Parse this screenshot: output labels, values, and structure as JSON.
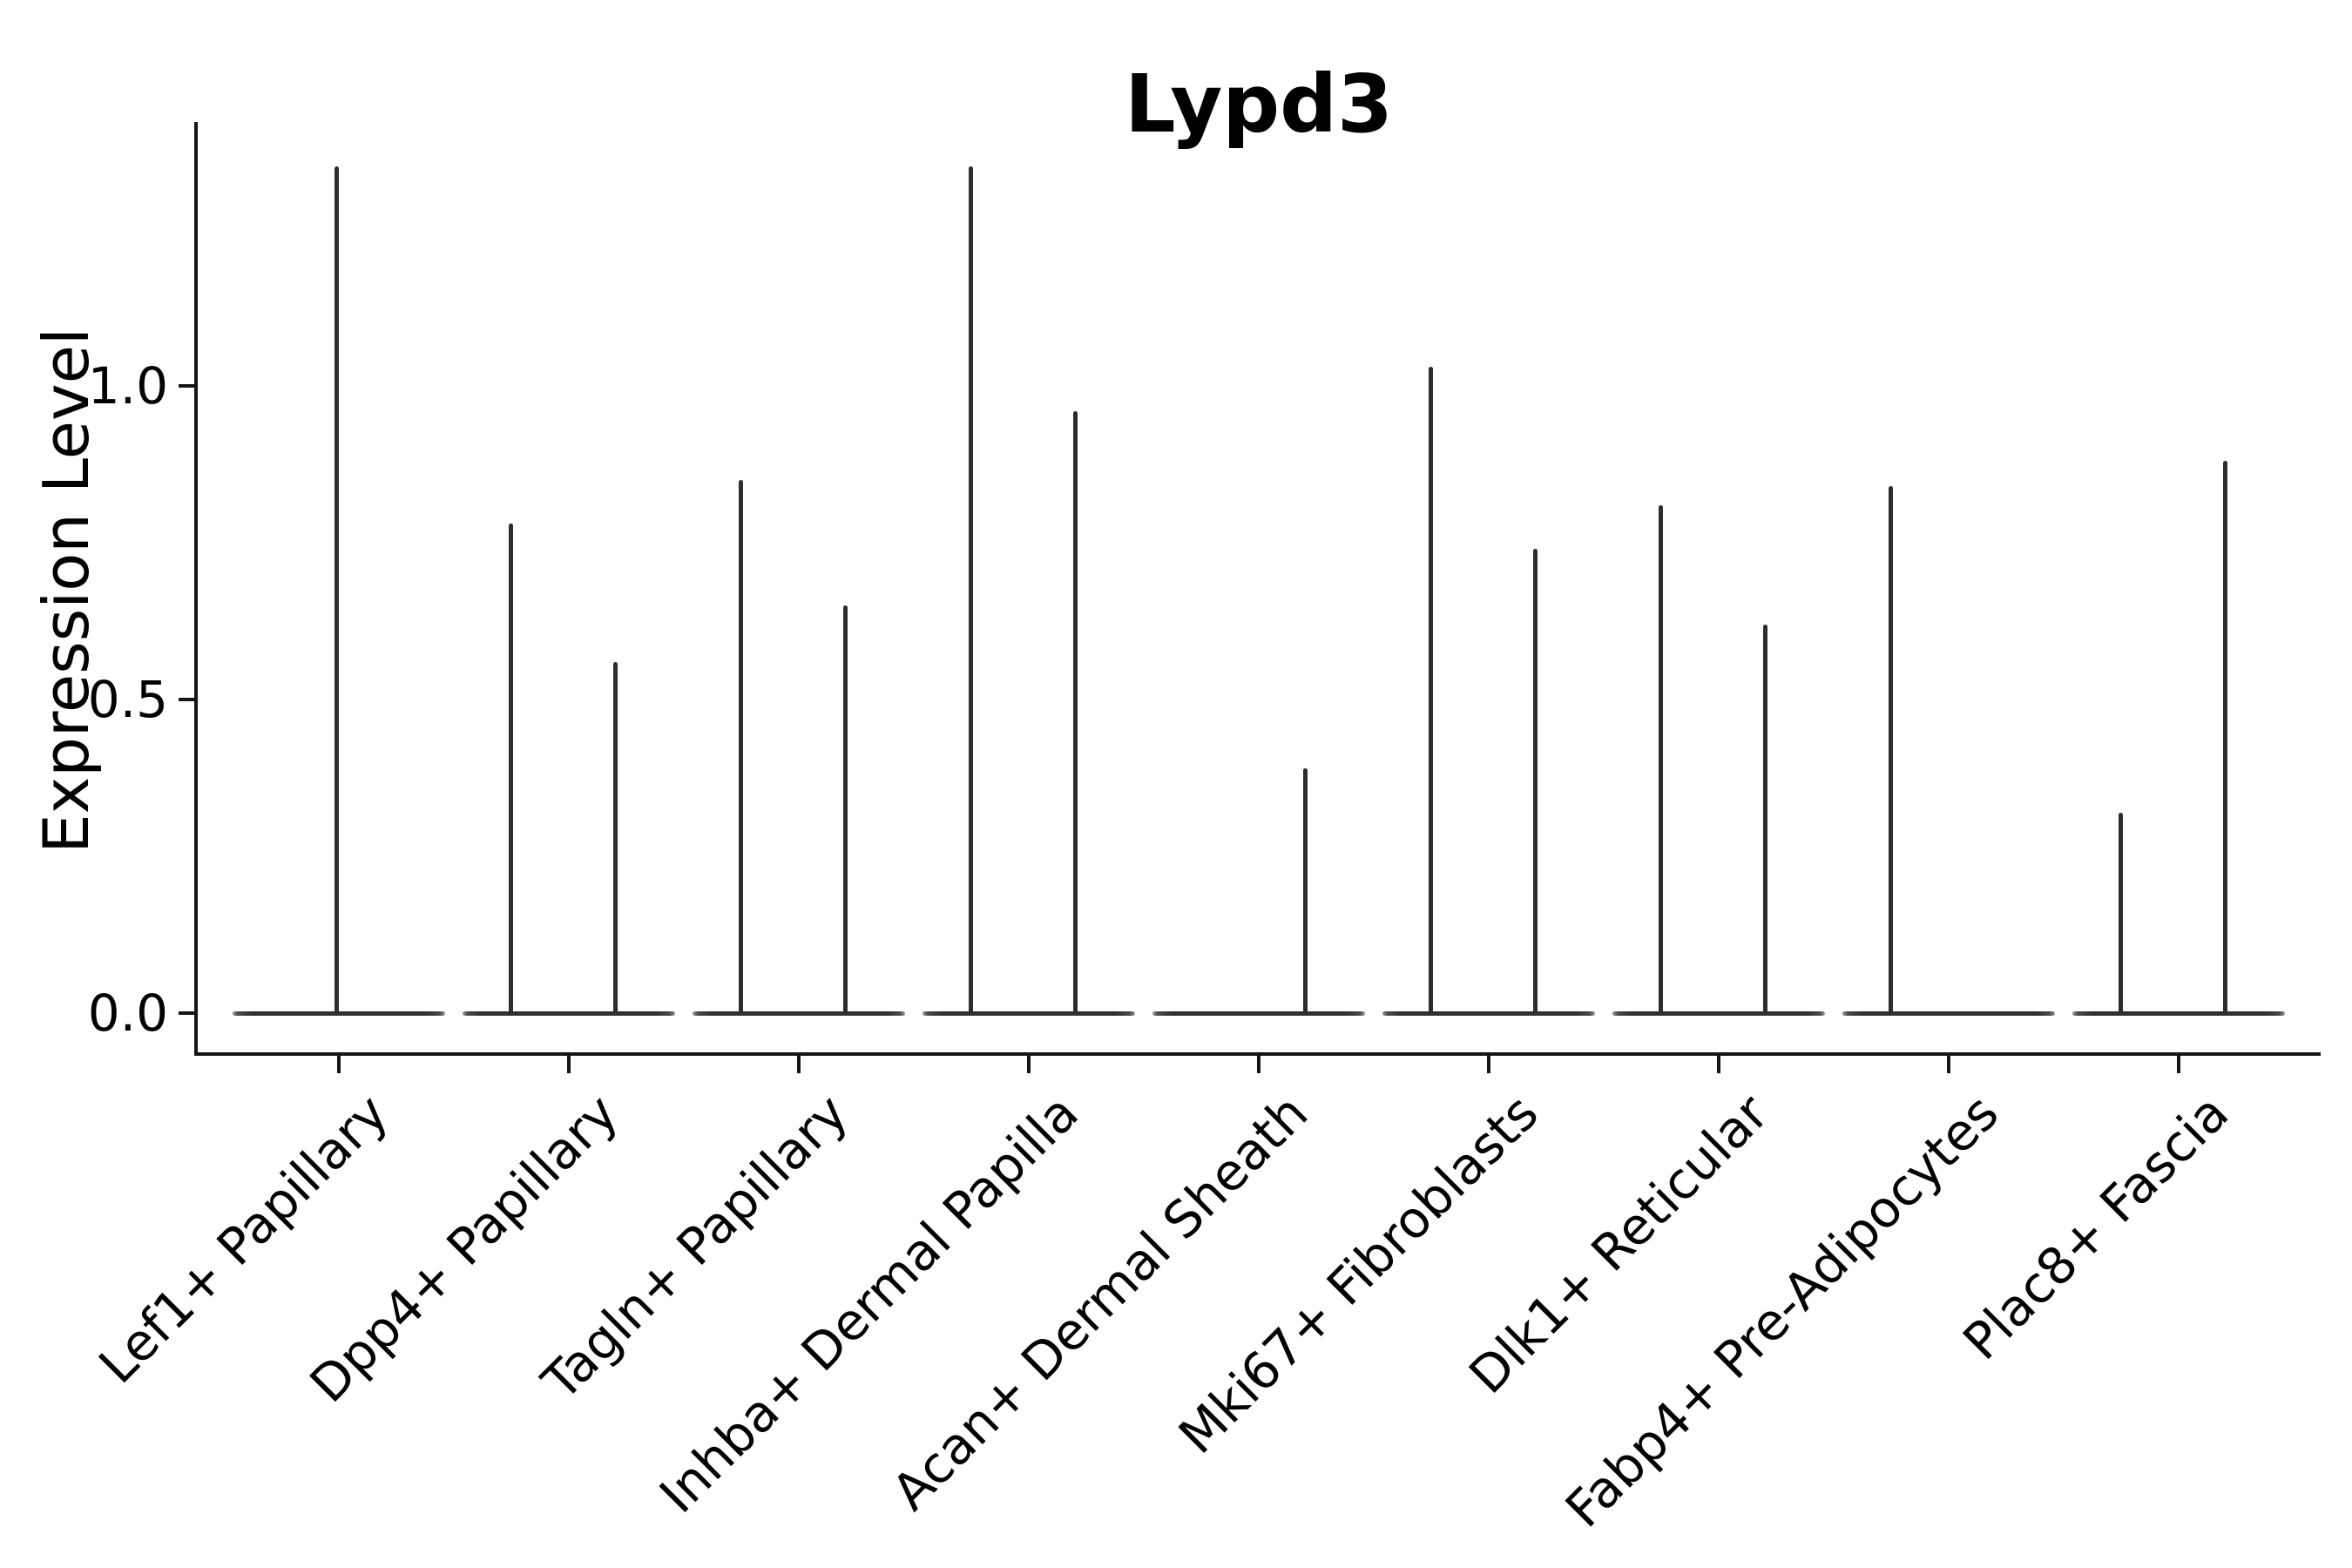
{
  "title": "Lypd3",
  "chart_data": {
    "type": "violin",
    "title": "Lypd3",
    "ylabel": "Expression Level",
    "xlabel": "",
    "yticks": [
      0.0,
      0.5,
      1.0
    ],
    "ylim": [
      -0.07,
      1.42
    ],
    "grid": false,
    "legend": "none",
    "baseline_value": 0.0,
    "categories": [
      "Lef1+ Papillary",
      "Dpp4+ Papillary",
      "Tagln+ Papillary",
      "Inhba+ Dermal Papilla",
      "Acan+ Dermal Sheath",
      "Mki67+ Fibroblasts",
      "Dlk1+ Reticular",
      "Fabp4+ Pre-Adipocytes",
      "Plac8+ Fascia"
    ],
    "violins": [
      {
        "category": "Lef1+ Papillary",
        "spikes": [
          {
            "slot": "center",
            "max": 1.35
          }
        ]
      },
      {
        "category": "Dpp4+ Papillary",
        "spikes": [
          {
            "slot": "left",
            "max": 0.78
          },
          {
            "slot": "right",
            "max": 0.56
          }
        ]
      },
      {
        "category": "Tagln+ Papillary",
        "spikes": [
          {
            "slot": "left",
            "max": 0.85
          },
          {
            "slot": "right",
            "max": 0.65
          }
        ]
      },
      {
        "category": "Inhba+ Dermal Papilla",
        "spikes": [
          {
            "slot": "left",
            "max": 1.35
          },
          {
            "slot": "right",
            "max": 0.96
          }
        ]
      },
      {
        "category": "Acan+ Dermal Sheath",
        "spikes": [
          {
            "slot": "right",
            "max": 0.39
          }
        ]
      },
      {
        "category": "Mki67+ Fibroblasts",
        "spikes": [
          {
            "slot": "left",
            "max": 1.03
          },
          {
            "slot": "right",
            "max": 0.74
          }
        ]
      },
      {
        "category": "Dlk1+ Reticular",
        "spikes": [
          {
            "slot": "left",
            "max": 0.81
          },
          {
            "slot": "right",
            "max": 0.62
          }
        ]
      },
      {
        "category": "Fabp4+ Pre-Adipocytes",
        "spikes": [
          {
            "slot": "left",
            "max": 0.84
          }
        ]
      },
      {
        "category": "Plac8+ Fascia",
        "spikes": [
          {
            "slot": "left",
            "max": 0.32
          },
          {
            "slot": "right",
            "max": 0.88
          }
        ]
      }
    ]
  }
}
